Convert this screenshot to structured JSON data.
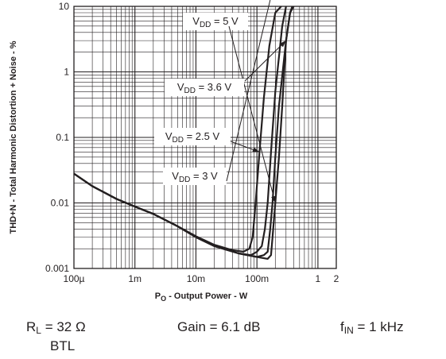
{
  "chart_data": {
    "type": "line",
    "y_axis_label": "THD+N - Total Harmonic Distortion + Noise - %",
    "x_axis_label": {
      "main": "P",
      "sub": "O",
      "rest": " - Output Power - W"
    },
    "x_scale": "log",
    "y_scale": "log",
    "xlim": [
      0.0001,
      2
    ],
    "ylim": [
      0.001,
      10
    ],
    "grid": true,
    "x_ticks": [
      {
        "value": 0.0001,
        "label": "100µ"
      },
      {
        "value": 0.001,
        "label": "1m"
      },
      {
        "value": 0.01,
        "label": "10m"
      },
      {
        "value": 0.1,
        "label": "100m"
      },
      {
        "value": 1,
        "label": "1"
      },
      {
        "value": 2,
        "label": "2"
      }
    ],
    "y_ticks": [
      {
        "value": 0.001,
        "label": "0.001"
      },
      {
        "value": 0.01,
        "label": "0.01"
      },
      {
        "value": 0.1,
        "label": "0.1"
      },
      {
        "value": 1,
        "label": "1"
      },
      {
        "value": 10,
        "label": "10"
      }
    ],
    "series": [
      {
        "name": "V_DD = 2.5 V",
        "label": {
          "pre": "V",
          "sub": "DD",
          "post": " = 2.5 V"
        },
        "x": [
          0.0001,
          0.0002,
          0.0005,
          0.001,
          0.002,
          0.005,
          0.01,
          0.02,
          0.04,
          0.06,
          0.075,
          0.085,
          0.095,
          0.11,
          0.13,
          0.16,
          0.2,
          0.25
        ],
        "y": [
          0.028,
          0.018,
          0.0115,
          0.0088,
          0.0068,
          0.0044,
          0.0031,
          0.0023,
          0.0019,
          0.0018,
          0.002,
          0.003,
          0.01,
          0.06,
          0.4,
          2.5,
          8,
          10
        ]
      },
      {
        "name": "V_DD = 3 V",
        "label": {
          "pre": "V",
          "sub": "DD",
          "post": " = 3 V"
        },
        "x": [
          0.0001,
          0.0002,
          0.0005,
          0.001,
          0.002,
          0.005,
          0.01,
          0.02,
          0.05,
          0.08,
          0.1,
          0.12,
          0.135,
          0.15,
          0.17,
          0.2,
          0.26,
          0.3
        ],
        "y": [
          0.028,
          0.018,
          0.0115,
          0.0088,
          0.0068,
          0.0044,
          0.003,
          0.0022,
          0.0017,
          0.0016,
          0.0018,
          0.0022,
          0.004,
          0.01,
          0.06,
          0.5,
          5,
          10
        ]
      },
      {
        "name": "V_DD = 3.6 V",
        "label": {
          "pre": "V",
          "sub": "DD",
          "post": " = 3.6 V"
        },
        "x": [
          0.0001,
          0.0002,
          0.0005,
          0.001,
          0.002,
          0.005,
          0.01,
          0.02,
          0.05,
          0.1,
          0.13,
          0.15,
          0.165,
          0.18,
          0.2,
          0.23,
          0.3,
          0.35,
          0.38
        ],
        "y": [
          0.028,
          0.018,
          0.0115,
          0.0088,
          0.0068,
          0.0044,
          0.003,
          0.0022,
          0.0017,
          0.0015,
          0.0016,
          0.0018,
          0.004,
          0.01,
          0.05,
          0.3,
          3,
          8,
          10
        ]
      },
      {
        "name": "V_DD = 5 V",
        "label": {
          "pre": "V",
          "sub": "DD",
          "post": " = 5 V"
        },
        "x": [
          0.0001,
          0.0002,
          0.0005,
          0.001,
          0.002,
          0.005,
          0.01,
          0.02,
          0.05,
          0.1,
          0.15,
          0.17,
          0.18,
          0.2,
          0.23,
          0.26,
          0.3,
          0.35,
          0.4
        ],
        "y": [
          0.028,
          0.018,
          0.0115,
          0.0088,
          0.0068,
          0.0044,
          0.003,
          0.0022,
          0.0017,
          0.0015,
          0.0014,
          0.0016,
          0.003,
          0.01,
          0.05,
          0.3,
          3,
          8,
          10
        ]
      }
    ]
  },
  "conditions": {
    "rl": {
      "pre": "R",
      "sub": "L",
      "post": " = 32 Ω"
    },
    "btl": "BTL",
    "gain": "Gain = 6.1 dB",
    "fin": {
      "pre": "f",
      "sub": "IN",
      "post": " = 1 kHz"
    }
  }
}
